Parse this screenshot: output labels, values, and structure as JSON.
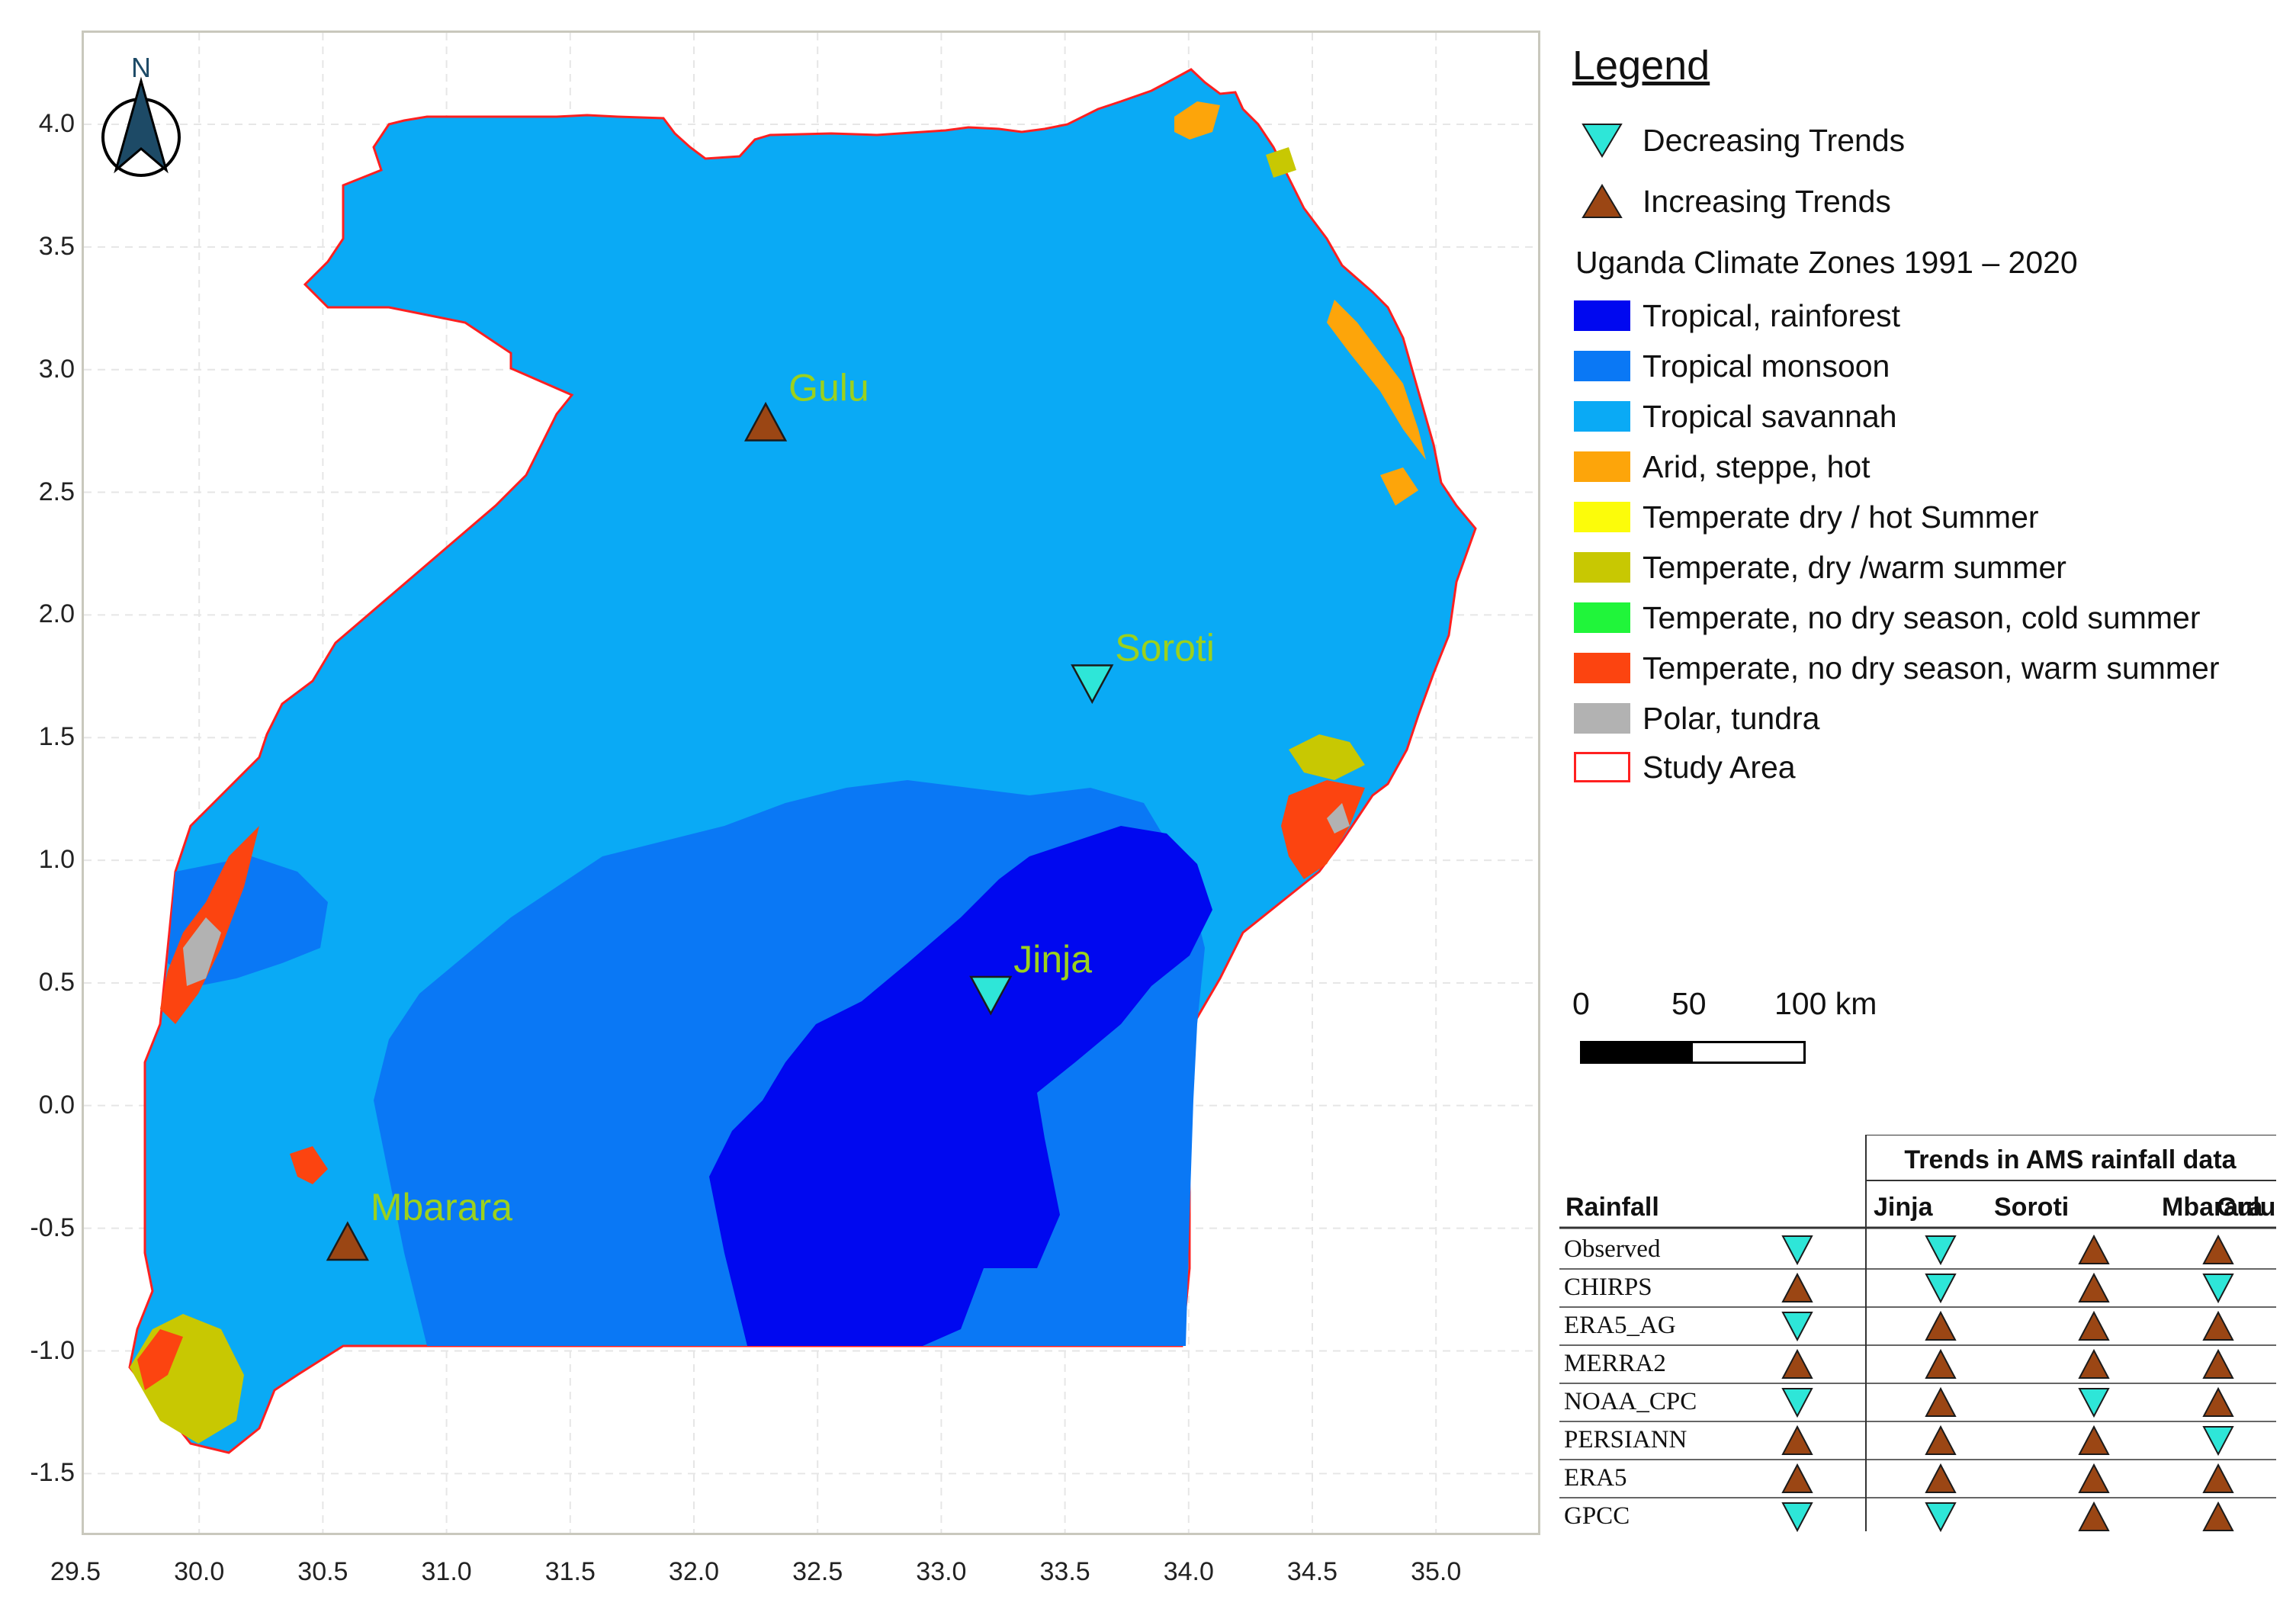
{
  "map": {
    "x_ticks": [
      "29.5",
      "30.0",
      "30.5",
      "31.0",
      "31.5",
      "32.0",
      "32.5",
      "33.0",
      "33.5",
      "34.0",
      "34.5",
      "35.0"
    ],
    "y_ticks": [
      "4.0",
      "3.5",
      "3.0",
      "2.5",
      "2.0",
      "1.5",
      "1.0",
      "0.5",
      "0.0",
      "-0.5",
      "-1.0",
      "-1.5"
    ],
    "north_label": "N",
    "stations": [
      {
        "name": "Gulu",
        "lon": 32.29,
        "lat": 2.78,
        "trend": "increasing"
      },
      {
        "name": "Soroti",
        "lon": 33.61,
        "lat": 1.72,
        "trend": "decreasing"
      },
      {
        "name": "Jinja",
        "lon": 33.2,
        "lat": 0.45,
        "trend": "decreasing"
      },
      {
        "name": "Mbarara",
        "lon": 30.6,
        "lat": -0.56,
        "trend": "increasing"
      }
    ]
  },
  "legend": {
    "title": "Legend",
    "decreasing": "Decreasing Trends",
    "increasing": "Increasing Trends",
    "zones_title": "Uganda Climate Zones 1991 – 2020",
    "zones": [
      {
        "label": "Tropical, rainforest",
        "color": "#0008f0"
      },
      {
        "label": "Tropical monsoon",
        "color": "#0a78f5"
      },
      {
        "label": "Tropical savannah",
        "color": "#0aaaf5"
      },
      {
        "label": "Arid, steppe, hot",
        "color": "#fda50a"
      },
      {
        "label": "Temperate dry / hot Summer",
        "color": "#fcfc0a"
      },
      {
        "label": "Temperate, dry /warm summer",
        "color": "#c8c802"
      },
      {
        "label": "Temperate, no dry season, cold summer",
        "color": "#20f53a"
      },
      {
        "label": "Temperate, no dry season, warm summer",
        "color": "#fc4410"
      },
      {
        "label": "Polar, tundra",
        "color": "#b2b2b2"
      }
    ],
    "study_area": "Study Area"
  },
  "scale": {
    "labels": [
      "0",
      "50",
      "100 km"
    ]
  },
  "table": {
    "title": "Trends in AMS rainfall data",
    "row_header": "Rainfall",
    "columns": [
      "Jinja",
      "Soroti",
      "Mbarara",
      "Gulu"
    ],
    "rows": [
      {
        "label": "Observed",
        "trends": [
          "down",
          "down",
          "up",
          "up"
        ]
      },
      {
        "label": "CHIRPS",
        "trends": [
          "up",
          "down",
          "up",
          "down"
        ]
      },
      {
        "label": "ERA5_AG",
        "trends": [
          "down",
          "up",
          "up",
          "up"
        ]
      },
      {
        "label": "MERRA2",
        "trends": [
          "up",
          "up",
          "up",
          "up"
        ]
      },
      {
        "label": "NOAA_CPC",
        "trends": [
          "down",
          "up",
          "down",
          "up"
        ]
      },
      {
        "label": "PERSIANN",
        "trends": [
          "up",
          "up",
          "up",
          "down"
        ]
      },
      {
        "label": "ERA5",
        "trends": [
          "up",
          "up",
          "up",
          "up"
        ]
      },
      {
        "label": "GPCC",
        "trends": [
          "down",
          "down",
          "up",
          "up"
        ]
      }
    ]
  },
  "colors": {
    "increasing": "#9b4614",
    "decreasing": "#2ee6d8",
    "station_label": "#9cd11c",
    "study_area_border": "#ff2020"
  }
}
